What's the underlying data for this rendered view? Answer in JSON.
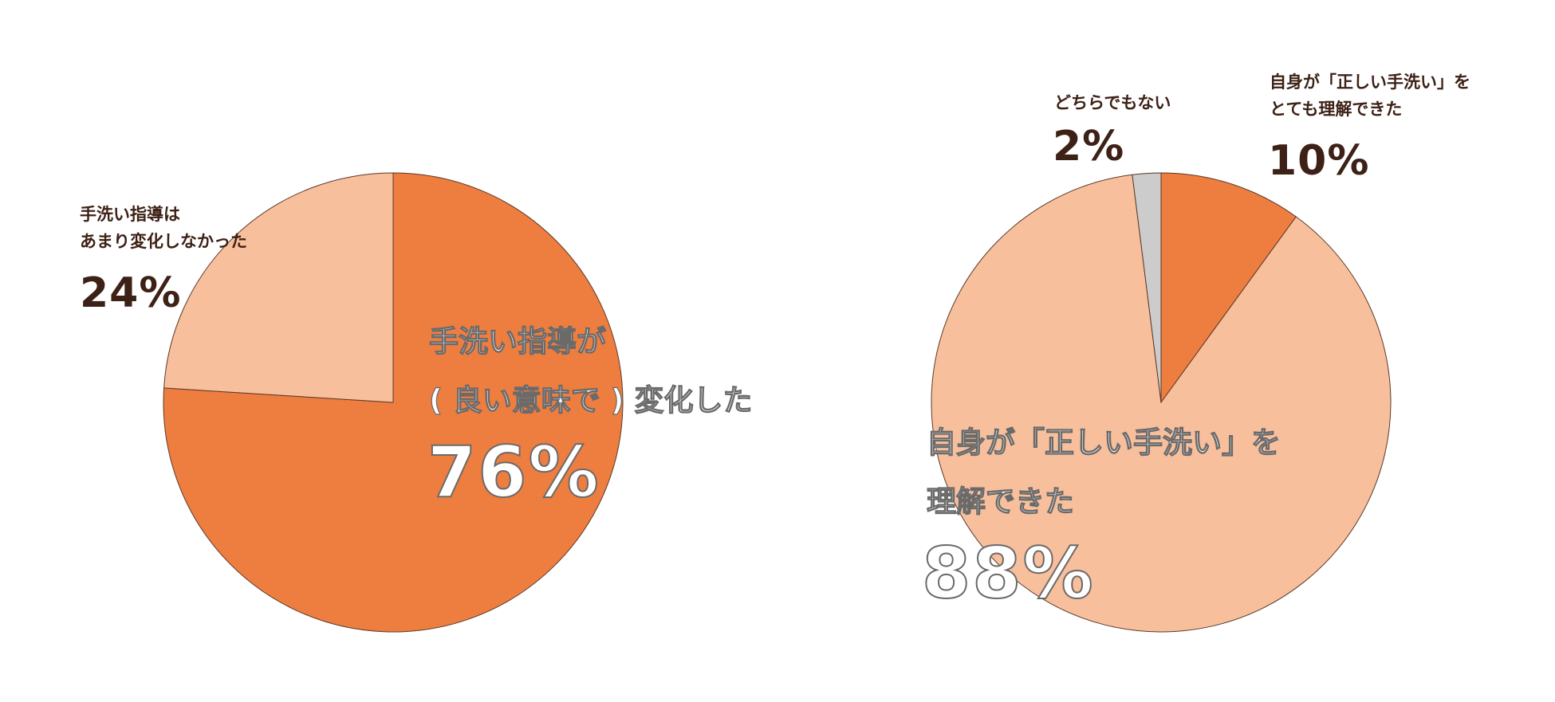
{
  "chart_data": [
    {
      "type": "pie",
      "title": "",
      "slices": [
        {
          "label_lines": [
            "手洗い指導が",
            "( 良い意味で ) 変化した"
          ],
          "value": 76,
          "value_label": "76%",
          "color": "#ee7d40"
        },
        {
          "label_lines": [
            "手洗い指導は",
            "あまり変化しなかった"
          ],
          "value": 24,
          "value_label": "24%",
          "color": "#f8bf9c"
        }
      ],
      "start": "12 o'clock",
      "direction": "clockwise"
    },
    {
      "type": "pie",
      "title": "",
      "slices": [
        {
          "label_lines": [
            "自身が「正しい手洗い」を",
            "とても理解できた"
          ],
          "value": 10,
          "value_label": "10%",
          "color": "#ee7d40"
        },
        {
          "label_lines": [
            "自身が「正しい手洗い」を",
            "理解できた"
          ],
          "value": 88,
          "value_label": "88%",
          "color": "#f8bf9c"
        },
        {
          "label_lines": [
            "どちらでもない"
          ],
          "value": 2,
          "value_label": "2%",
          "color": "#cccccc"
        }
      ],
      "start": "12 o'clock",
      "direction": "clockwise"
    }
  ]
}
